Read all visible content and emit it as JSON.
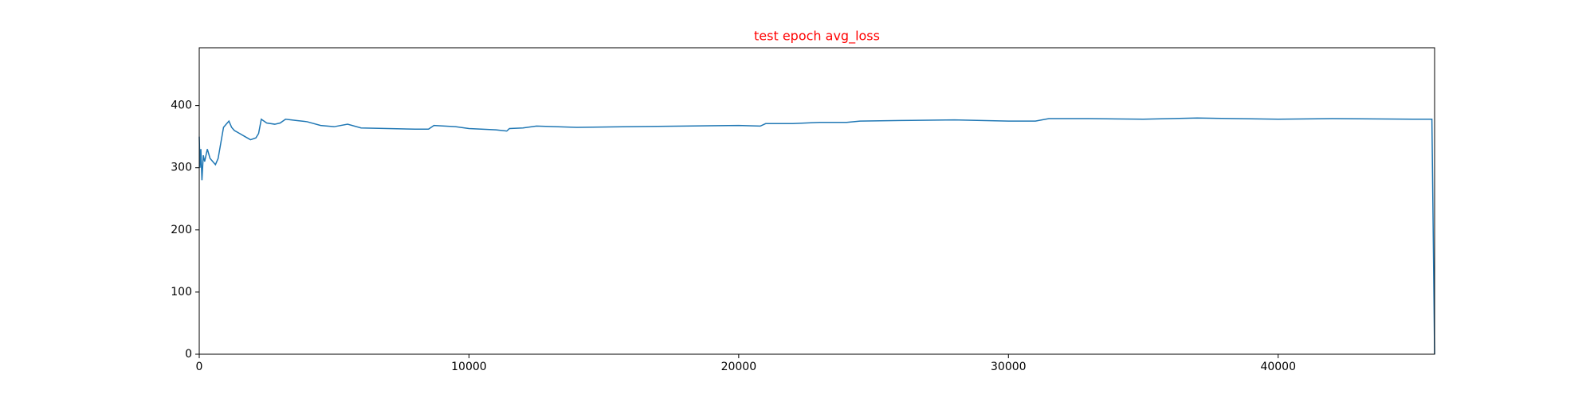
{
  "chart_data": {
    "type": "line",
    "title": "test epoch avg_loss",
    "title_color": "#ff0000",
    "x": [
      0,
      30,
      60,
      100,
      150,
      200,
      300,
      400,
      500,
      600,
      700,
      800,
      900,
      1000,
      1100,
      1200,
      1300,
      1500,
      1700,
      1900,
      2100,
      2200,
      2300,
      2500,
      2800,
      3000,
      3200,
      3600,
      4000,
      4500,
      5000,
      5500,
      6000,
      7000,
      8000,
      8500,
      8700,
      9500,
      10000,
      11000,
      11400,
      11500,
      12000,
      12500,
      14000,
      16000,
      18000,
      20000,
      20800,
      21000,
      22000,
      23000,
      24000,
      24500,
      26000,
      28000,
      30000,
      31000,
      31500,
      33000,
      35000,
      37000,
      40000,
      42000,
      45000,
      45700,
      45800
    ],
    "series": [
      {
        "name": "avg_loss",
        "color": "#1f77b4",
        "values": [
          350,
          300,
          330,
          280,
          320,
          310,
          330,
          315,
          310,
          305,
          315,
          340,
          365,
          370,
          375,
          365,
          360,
          355,
          350,
          345,
          348,
          355,
          378,
          372,
          370,
          372,
          378,
          376,
          374,
          368,
          366,
          370,
          364,
          363,
          362,
          362,
          368,
          366,
          363,
          361,
          359,
          363,
          364,
          367,
          365,
          366,
          367,
          368,
          367,
          371,
          371,
          373,
          373,
          375,
          376,
          377,
          375,
          375,
          379,
          379,
          378,
          380,
          378,
          379,
          378,
          378,
          0
        ]
      }
    ],
    "xlim": [
      0,
      45800
    ],
    "ylim": [
      0,
      493
    ],
    "xticks": [
      0,
      10000,
      20000,
      30000,
      40000
    ],
    "yticks": [
      0,
      100,
      200,
      300,
      400
    ],
    "grid": false
  }
}
